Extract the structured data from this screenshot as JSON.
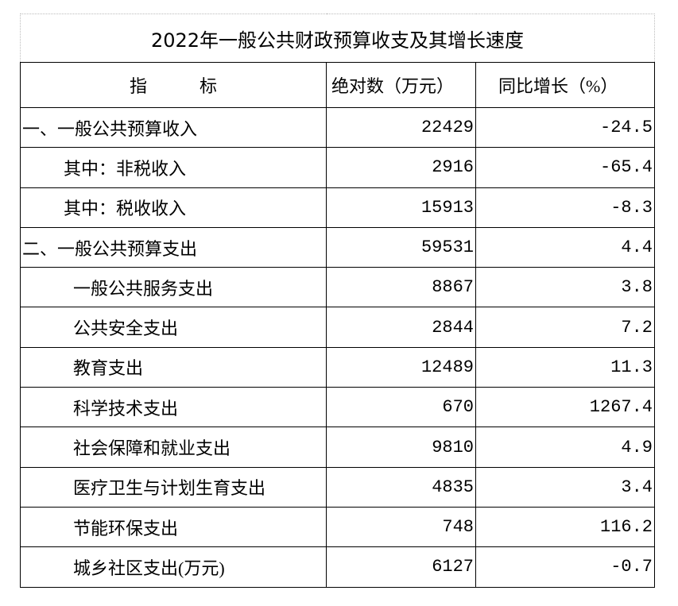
{
  "table": {
    "title": "2022年一般公共财政预算收支及其增长速度",
    "header": [
      "指　　　标",
      "绝对数（万元）",
      "同比增长（%）"
    ],
    "rows": [
      [
        "一、一般公共预算收入",
        "22429",
        "-24.5"
      ],
      [
        "其中：非税收入",
        "2916",
        "-65.4"
      ],
      [
        "其中：税收收入",
        "15913",
        "-8.3"
      ],
      [
        "二、一般公共预算支出",
        "59531",
        "4.4"
      ],
      [
        "一般公共服务支出",
        "8867",
        "3.8"
      ],
      [
        "公共安全支出",
        "2844",
        "7.2"
      ],
      [
        "教育支出",
        "12489",
        "11.3"
      ],
      [
        "科学技术支出",
        "670",
        "1267.4"
      ],
      [
        "社会保障和就业支出",
        "9810",
        "4.9"
      ],
      [
        "医疗卫生与计划生育支出",
        "4835",
        "3.4"
      ],
      [
        "节能环保支出",
        "748",
        "116.2"
      ],
      [
        "城乡社区支出(万元)",
        "6127",
        "-0.7"
      ]
    ]
  }
}
